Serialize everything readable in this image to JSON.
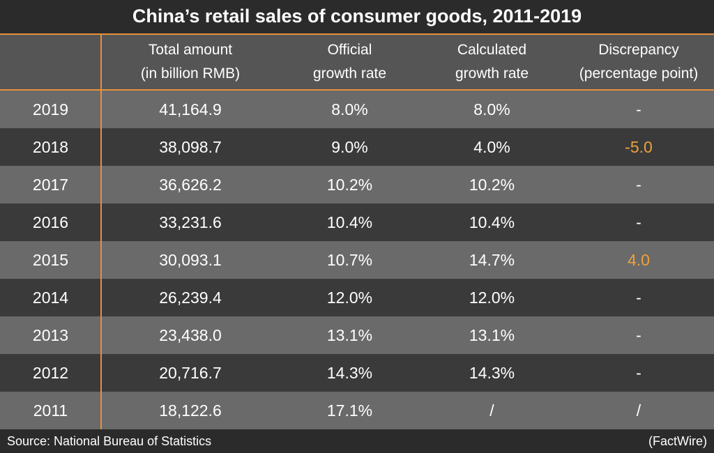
{
  "title": "China’s retail sales of consumer goods, 2011-2019",
  "chart_data": {
    "type": "table",
    "title": "China’s retail sales of consumer goods, 2011-2019",
    "columns": [
      "",
      "Total amount\n(in billion RMB)",
      "Official\ngrowth rate",
      "Calculated\ngrowth rate",
      "Discrepancy\n(percentage point)"
    ],
    "rows": [
      {
        "year": "2019",
        "total": "41,164.9",
        "official": "8.0%",
        "calculated": "8.0%",
        "discrepancy": "-"
      },
      {
        "year": "2018",
        "total": "38,098.7",
        "official": "9.0%",
        "calculated": "4.0%",
        "discrepancy": "-5.0"
      },
      {
        "year": "2017",
        "total": "36,626.2",
        "official": "10.2%",
        "calculated": "10.2%",
        "discrepancy": "-"
      },
      {
        "year": "2016",
        "total": "33,231.6",
        "official": "10.4%",
        "calculated": "10.4%",
        "discrepancy": "-"
      },
      {
        "year": "2015",
        "total": "30,093.1",
        "official": "10.7%",
        "calculated": "14.7%",
        "discrepancy": "4.0"
      },
      {
        "year": "2014",
        "total": "26,239.4",
        "official": "12.0%",
        "calculated": "12.0%",
        "discrepancy": "-"
      },
      {
        "year": "2013",
        "total": "23,438.0",
        "official": "13.1%",
        "calculated": "13.1%",
        "discrepancy": "-"
      },
      {
        "year": "2012",
        "total": "20,716.7",
        "official": "14.3%",
        "calculated": "14.3%",
        "discrepancy": "-"
      },
      {
        "year": "2011",
        "total": "18,122.6",
        "official": "17.1%",
        "calculated": "/",
        "discrepancy": "/"
      }
    ]
  },
  "footer": {
    "source": "Source: National Bureau of Statistics",
    "credit": "(FactWire)"
  },
  "colors": {
    "background": "#2b2b2b",
    "header": "#555555",
    "row_light": "#6a6a6a",
    "row_dark": "#3a3a3a",
    "accent": "#e8913a",
    "highlight_text": "#f0a03c"
  }
}
